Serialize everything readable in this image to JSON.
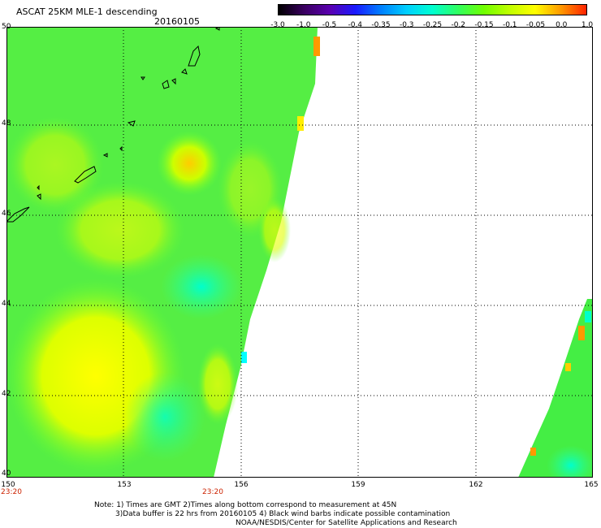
{
  "header": {
    "title": "ASCAT 25KM MLE-1 descending",
    "date": "20160105"
  },
  "colorbar": {
    "labels": [
      "-3.0",
      "-1.0",
      "-0.5",
      "-0.4",
      "-0.35",
      "-0.3",
      "-0.25",
      "-0.2",
      "-0.15",
      "-0.1",
      "-0.05",
      "0.0",
      "1.0"
    ],
    "colors": [
      "#000000",
      "#3a0060",
      "#5a00b0",
      "#1a1aff",
      "#0080ff",
      "#00d0ff",
      "#00ffd0",
      "#30ff60",
      "#70ff00",
      "#c0ff00",
      "#ffff00",
      "#ff9900",
      "#ff2200"
    ]
  },
  "axes": {
    "lat_labels": [
      "50",
      "48",
      "46",
      "44",
      "42",
      "40"
    ],
    "lon_labels": [
      "150",
      "153",
      "156",
      "159",
      "162",
      "165"
    ],
    "time_left": "23:20",
    "time_mid": "23:20"
  },
  "notes": {
    "line1": "Note: 1) Times are GMT 2)Times along bottom correspond to measurement at 45N",
    "line2": "3)Data buffer is 22 hrs from 20160105 4) Black wind barbs indicate possible contamination",
    "line3": "NOAA/NESDIS/Center for Satellite Applications and Research"
  }
}
